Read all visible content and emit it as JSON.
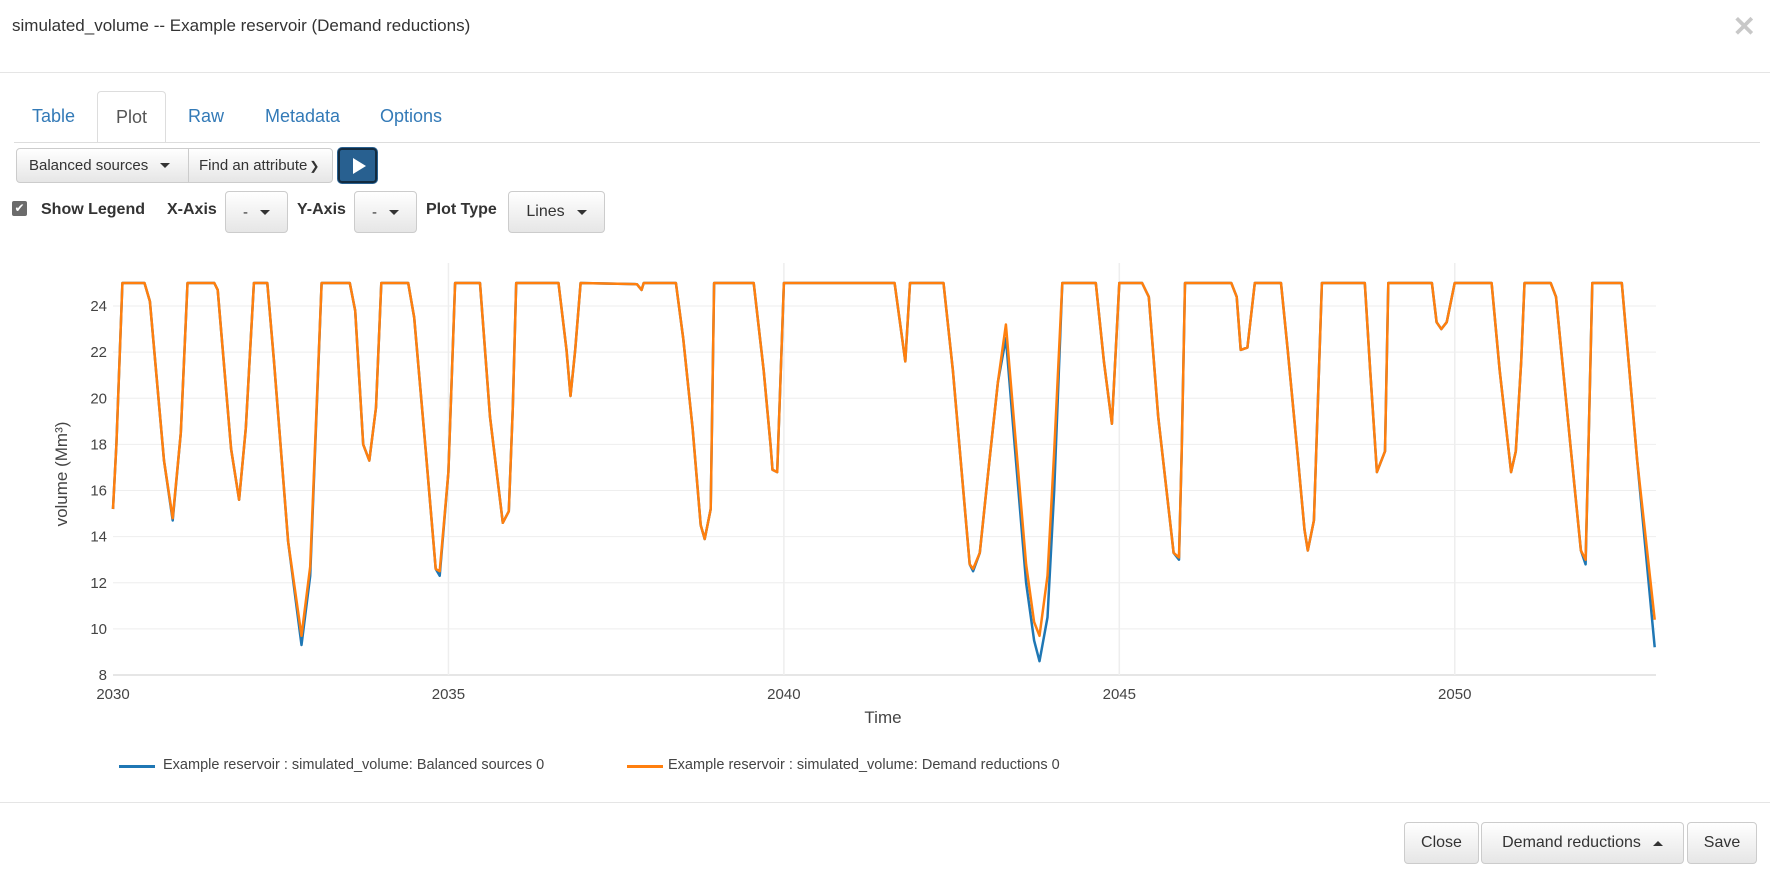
{
  "window": {
    "title": "simulated_volume -- Example reservoir (Demand reductions)",
    "close_icon": "close-icon"
  },
  "tabs": [
    {
      "label": "Table",
      "active": false
    },
    {
      "label": "Plot",
      "active": true
    },
    {
      "label": "Raw",
      "active": false
    },
    {
      "label": "Metadata",
      "active": false
    },
    {
      "label": "Options",
      "active": false
    }
  ],
  "toolbar": {
    "scenario_select": "Balanced sources",
    "attribute_placeholder": "Find an attribute",
    "play_icon": "play-icon",
    "show_legend_label": "Show Legend",
    "show_legend_checked": true,
    "xaxis_label": "X-Axis",
    "xaxis_value": "-",
    "yaxis_label": "Y-Axis",
    "yaxis_value": "-",
    "plot_type_label": "Plot Type",
    "plot_type_value": "Lines"
  },
  "footer": {
    "close_label": "Close",
    "scenario_label": "Demand reductions",
    "save_label": "Save"
  },
  "chart_data": {
    "type": "line",
    "xlabel": "Time",
    "ylabel": "volume (Mm³)",
    "xlim": [
      2030,
      2053
    ],
    "ylim": [
      8,
      25.8
    ],
    "xticks": [
      "2030",
      "2035",
      "2040",
      "2045",
      "2050"
    ],
    "yticks": [
      "8",
      "10",
      "12",
      "14",
      "16",
      "18",
      "20",
      "22",
      "24"
    ],
    "grid": true,
    "legend_position": "bottom",
    "x": [
      2030.0,
      2030.05,
      2030.14,
      2030.47,
      2030.55,
      2030.76,
      2030.89,
      2031.01,
      2031.11,
      2031.51,
      2031.56,
      2031.76,
      2031.88,
      2031.98,
      2032.1,
      2032.3,
      2032.4,
      2032.61,
      2032.81,
      2032.94,
      2033.11,
      2033.53,
      2033.61,
      2033.73,
      2033.82,
      2033.92,
      2034.0,
      2034.4,
      2034.49,
      2034.66,
      2034.81,
      2034.87,
      2035.0,
      2035.1,
      2035.47,
      2035.62,
      2035.81,
      2035.9,
      2035.96,
      2036.01,
      2036.64,
      2036.76,
      2036.82,
      2036.89,
      2036.97,
      2037.81,
      2037.88,
      2037.91,
      2038.39,
      2038.5,
      2038.64,
      2038.76,
      2038.82,
      2038.91,
      2038.96,
      2039.55,
      2039.7,
      2039.8,
      2039.83,
      2039.9,
      2040.0,
      2041.65,
      2041.81,
      2041.88,
      2042.38,
      2042.52,
      2042.65,
      2042.77,
      2042.82,
      2042.92,
      2043.06,
      2043.19,
      2043.31,
      2043.44,
      2043.61,
      2043.73,
      2043.81,
      2043.93,
      2044.03,
      2044.15,
      2044.65,
      2044.77,
      2044.89,
      2045.0,
      2045.34,
      2045.44,
      2045.58,
      2045.81,
      2045.89,
      2045.93,
      2045.98,
      2046.67,
      2046.75,
      2046.81,
      2046.91,
      2047.02,
      2047.41,
      2047.51,
      2047.65,
      2047.76,
      2047.81,
      2047.9,
      2048.02,
      2048.66,
      2048.74,
      2048.84,
      2048.96,
      2049.01,
      2049.66,
      2049.73,
      2049.8,
      2049.88,
      2050.0,
      2050.55,
      2050.67,
      2050.84,
      2050.91,
      2050.99,
      2051.04,
      2051.43,
      2051.51,
      2051.73,
      2051.88,
      2051.95,
      2052.0,
      2052.05,
      2052.49,
      2052.72,
      2052.98
    ],
    "series": [
      {
        "name": "Example reservoir : simulated_volume: Balanced sources 0",
        "color": "#1f77b4",
        "values": [
          15.2,
          18,
          25,
          25,
          24.2,
          17.3,
          14.7,
          18.5,
          25,
          25,
          24.7,
          17.8,
          15.6,
          18.7,
          25,
          25,
          21.6,
          13.8,
          9.3,
          12.3,
          25,
          25,
          23.8,
          18,
          17.3,
          19.6,
          25,
          25,
          23.5,
          17.8,
          12.6,
          12.3,
          16.8,
          25,
          25,
          19.2,
          14.6,
          15.1,
          19.6,
          25,
          25,
          22.1,
          20.1,
          22.1,
          25,
          24.95,
          24.7,
          25,
          25,
          22.6,
          18.7,
          14.5,
          13.9,
          15.2,
          25,
          25,
          21.2,
          18,
          16.9,
          16.8,
          25,
          25,
          21.6,
          25,
          25,
          21.2,
          16.8,
          12.8,
          12.5,
          13.3,
          17.2,
          20.7,
          22.6,
          18.0,
          12.0,
          9.5,
          8.6,
          10.5,
          16.0,
          25,
          25,
          21.6,
          18.9,
          25,
          25,
          24.4,
          19.2,
          13.3,
          13.0,
          17.7,
          25,
          25,
          24.4,
          22.1,
          22.2,
          25,
          25,
          22.1,
          17.8,
          14.3,
          13.4,
          14.7,
          25,
          25,
          21.2,
          16.8,
          17.7,
          25,
          25,
          23.3,
          23.0,
          23.3,
          25,
          25,
          21.2,
          16.8,
          17.7,
          21.6,
          25,
          25,
          24.4,
          17.8,
          13.4,
          12.8,
          18.7,
          25,
          25,
          17.3,
          9.2
        ]
      },
      {
        "name": "Example reservoir : simulated_volume: Demand reductions 0",
        "color": "#ff7f0e",
        "values": [
          15.2,
          18,
          25,
          25,
          24.2,
          17.3,
          14.8,
          18.5,
          25,
          25,
          24.7,
          17.8,
          15.6,
          18.7,
          25,
          25,
          21.6,
          13.8,
          9.7,
          12.7,
          25,
          25,
          23.8,
          18,
          17.3,
          19.6,
          25,
          25,
          23.5,
          17.8,
          12.6,
          12.5,
          16.8,
          25,
          25,
          19.2,
          14.6,
          15.1,
          19.6,
          25,
          25,
          22.1,
          20.1,
          22.1,
          25,
          24.95,
          24.7,
          25,
          25,
          22.6,
          18.7,
          14.5,
          13.9,
          15.2,
          25,
          25,
          21.2,
          18,
          16.9,
          16.8,
          25,
          25,
          21.6,
          25,
          25,
          21.2,
          16.8,
          12.8,
          12.6,
          13.3,
          17.2,
          20.7,
          23.2,
          18.7,
          12.8,
          10.3,
          9.7,
          12.3,
          17.7,
          25,
          25,
          21.6,
          18.9,
          25,
          25,
          24.4,
          19.2,
          13.3,
          13.1,
          17.7,
          25,
          25,
          24.4,
          22.1,
          22.2,
          25,
          25,
          22.1,
          17.8,
          14.3,
          13.4,
          14.7,
          25,
          25,
          21.2,
          16.8,
          17.7,
          25,
          25,
          23.3,
          23.0,
          23.3,
          25,
          25,
          21.2,
          16.8,
          17.7,
          21.6,
          25,
          25,
          24.4,
          17.8,
          13.4,
          13.0,
          18.7,
          25,
          25,
          17.3,
          10.4
        ]
      }
    ]
  }
}
